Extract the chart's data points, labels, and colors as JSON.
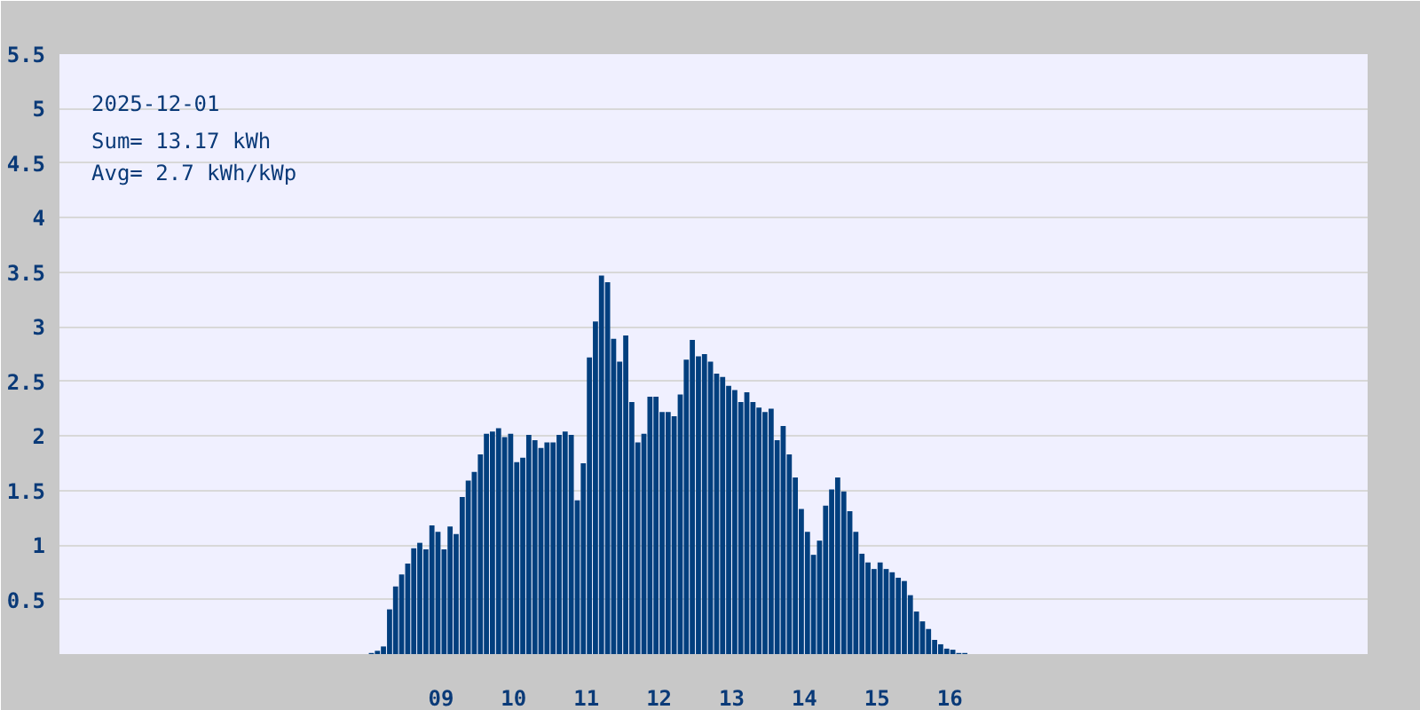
{
  "chart_data": {
    "type": "bar",
    "annotations": [
      "2025-12-01",
      "Sum= 13.17 kWh",
      "Avg= 2.7 kWh/kWp"
    ],
    "x": [
      8.042,
      8.125,
      8.208,
      8.292,
      8.375,
      8.458,
      8.542,
      8.625,
      8.708,
      8.792,
      8.875,
      8.958,
      9.042,
      9.125,
      9.208,
      9.292,
      9.375,
      9.458,
      9.542,
      9.625,
      9.708,
      9.792,
      9.875,
      9.958,
      10.042,
      10.125,
      10.208,
      10.292,
      10.375,
      10.458,
      10.542,
      10.625,
      10.708,
      10.792,
      10.875,
      10.958,
      11.042,
      11.125,
      11.208,
      11.292,
      11.375,
      11.458,
      11.542,
      11.625,
      11.708,
      11.792,
      11.875,
      11.958,
      12.042,
      12.125,
      12.208,
      12.292,
      12.375,
      12.458,
      12.542,
      12.625,
      12.708,
      12.792,
      12.875,
      12.958,
      13.042,
      13.125,
      13.208,
      13.292,
      13.375,
      13.458,
      13.542,
      13.625,
      13.708,
      13.792,
      13.875,
      13.958,
      14.042,
      14.125,
      14.208,
      14.292,
      14.375,
      14.458,
      14.542,
      14.625,
      14.708,
      14.792,
      14.875,
      14.958,
      15.042,
      15.125,
      15.208,
      15.292,
      15.375,
      15.458,
      15.542,
      15.625,
      15.708,
      15.792,
      15.875,
      15.958,
      16.042,
      16.125,
      16.208
    ],
    "values": [
      0.01,
      0.03,
      0.07,
      0.41,
      0.62,
      0.73,
      0.83,
      0.97,
      1.02,
      0.96,
      1.18,
      1.12,
      0.96,
      1.17,
      1.1,
      1.44,
      1.59,
      1.67,
      1.83,
      2.02,
      2.04,
      2.07,
      1.99,
      2.02,
      1.76,
      1.8,
      2.01,
      1.96,
      1.89,
      1.94,
      1.94,
      2.01,
      2.04,
      2.01,
      1.41,
      1.75,
      2.72,
      3.05,
      3.47,
      3.41,
      2.89,
      2.68,
      2.92,
      2.31,
      1.94,
      2.02,
      2.36,
      2.36,
      2.22,
      2.22,
      2.18,
      2.38,
      2.7,
      2.88,
      2.73,
      2.75,
      2.68,
      2.57,
      2.54,
      2.46,
      2.42,
      2.31,
      2.4,
      2.31,
      2.26,
      2.22,
      2.25,
      1.96,
      2.09,
      1.83,
      1.62,
      1.33,
      1.12,
      0.91,
      1.04,
      1.36,
      1.51,
      1.62,
      1.49,
      1.31,
      1.12,
      0.92,
      0.84,
      0.78,
      0.84,
      0.78,
      0.75,
      0.7,
      0.67,
      0.54,
      0.39,
      0.3,
      0.23,
      0.13,
      0.09,
      0.05,
      0.04,
      0.01,
      0.01
    ],
    "color": "#023f7e",
    "xlim": [
      3.75,
      21.75
    ],
    "xticks": [
      {
        "value": 9,
        "label": "09"
      },
      {
        "value": 10,
        "label": "10"
      },
      {
        "value": 11,
        "label": "11"
      },
      {
        "value": 12,
        "label": "12"
      },
      {
        "value": 13,
        "label": "13"
      },
      {
        "value": 14,
        "label": "14"
      },
      {
        "value": 15,
        "label": "15"
      },
      {
        "value": 16,
        "label": "16"
      }
    ],
    "ylim": [
      0,
      5.5
    ],
    "yticks": [
      0.5,
      1,
      1.5,
      2,
      2.5,
      3,
      3.5,
      4,
      4.5,
      5,
      5.5
    ],
    "grid": "y"
  }
}
